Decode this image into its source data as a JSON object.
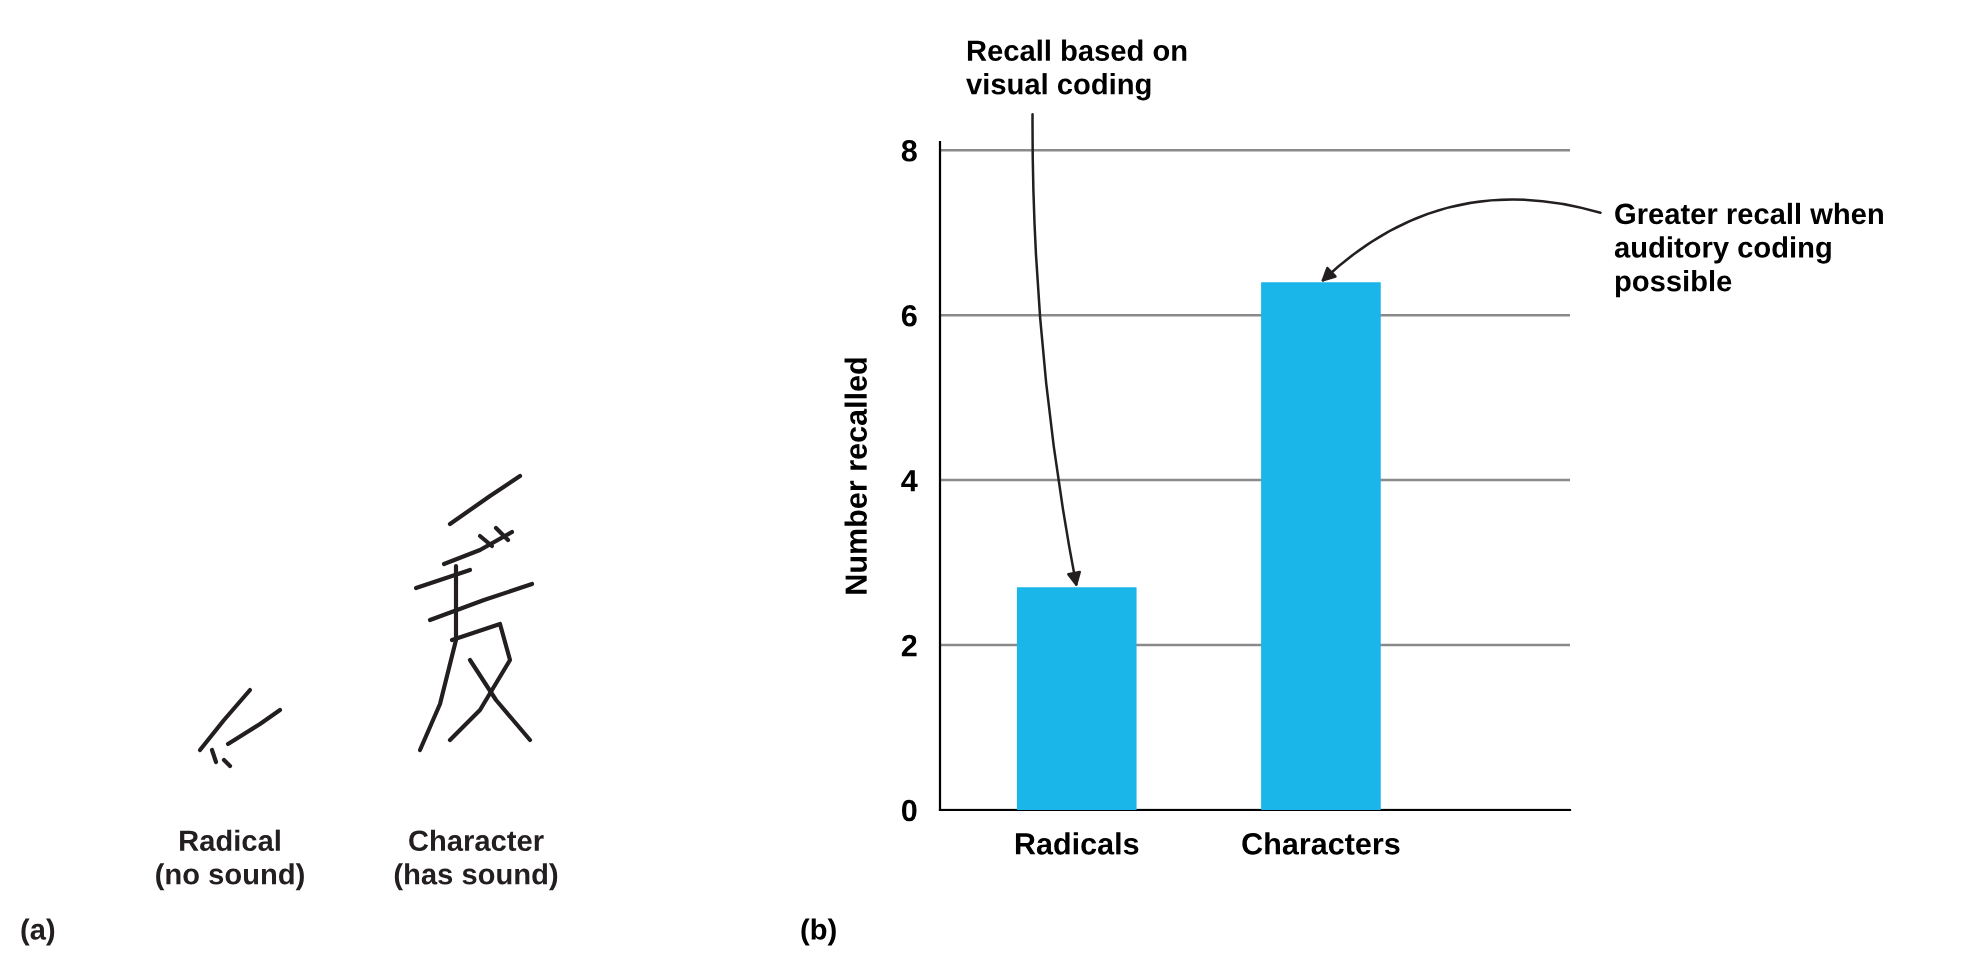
{
  "chart_data": [
    {
      "type": "other",
      "annotations": [
        "Radical\n(no sound)",
        "Character\n(has sound)",
        "(a)"
      ]
    },
    {
      "type": "bar",
      "categories": [
        "Radicals",
        "Characters"
      ],
      "values": [
        2.7,
        6.4
      ],
      "color": "#1ab6ea",
      "ylabel": "Number recalled",
      "ylim": [
        0,
        8.1
      ],
      "yticks": [
        0,
        2,
        4,
        6,
        8
      ],
      "grid": "y",
      "annotations": [
        {
          "text": "Recall based on\nvisual coding",
          "x": "Radicals",
          "y": 2.7
        },
        {
          "text": "Greater recall when\nauditory coding\npossible",
          "x": "Characters",
          "y": 6.4
        },
        "(b)"
      ]
    }
  ]
}
